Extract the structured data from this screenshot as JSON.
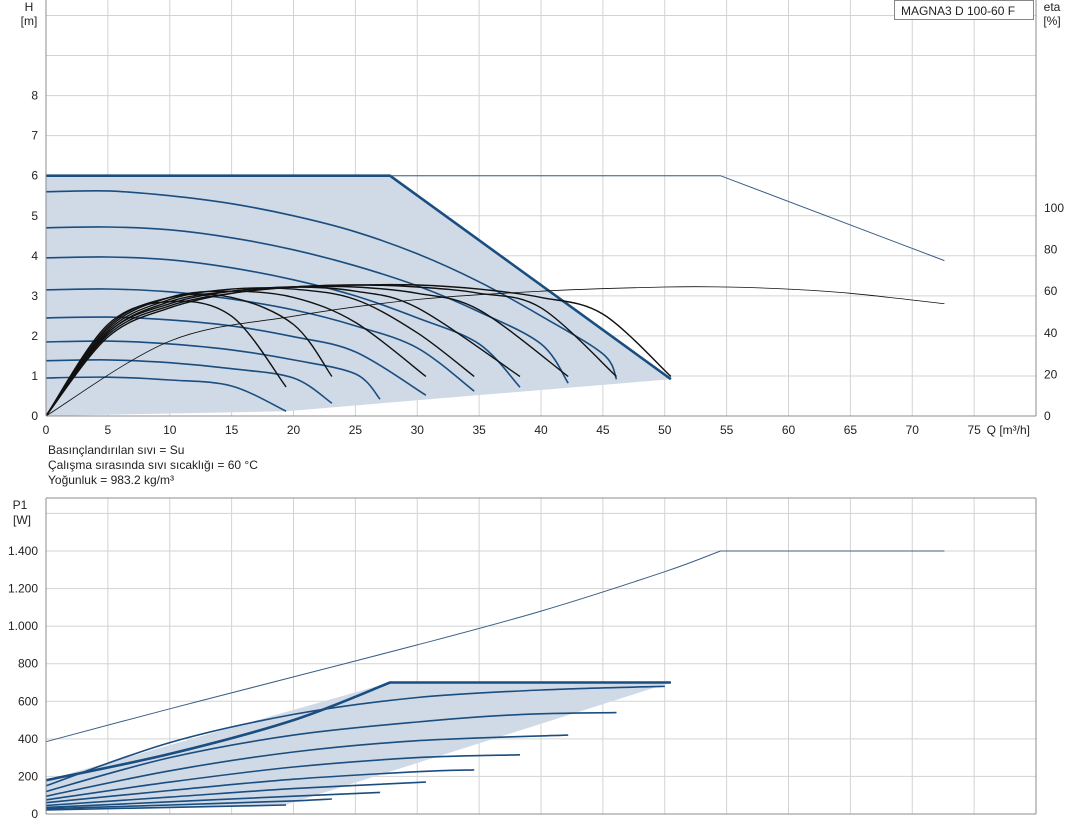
{
  "model_label": "MAGNA3 D 100-60 F",
  "notes": {
    "fluid": "Basınçlandırılan sıvı = Su",
    "temperature": "Çalışma sırasında sıvı sıcaklığı = 60 °C",
    "density": "Yoğunluk = 983.2 kg/m³"
  },
  "chart_data": [
    {
      "type": "line",
      "xlabel": "Q [m³/h]",
      "ylabel_line1": "H",
      "ylabel_line2": "[m]",
      "y2label_line1": "eta",
      "y2label_line2": "[%]",
      "xlim": [
        0,
        80
      ],
      "ylim": [
        0,
        10
      ],
      "y2lim": [
        0,
        100
      ],
      "x_ticks": [
        0,
        5,
        10,
        15,
        20,
        25,
        30,
        35,
        40,
        45,
        50,
        55,
        60,
        65,
        70,
        75
      ],
      "y_ticks": [
        0,
        1,
        2,
        3,
        4,
        5,
        6,
        7,
        8
      ],
      "y2_ticks": [
        0,
        20,
        40,
        60,
        80,
        100
      ],
      "grid": true,
      "colors": {
        "envelope_fill": "#cfdae6",
        "curve": "#1a4d80",
        "efficiency": "#111111",
        "thin_curve": "#3c5f85"
      },
      "envelope": {
        "x": [
          0,
          27.8,
          50.5,
          50.5,
          19.4,
          0
        ],
        "y": [
          6,
          6,
          0.92,
          0.92,
          0.12,
          0
        ]
      },
      "max_head_curve": {
        "x": [
          0,
          27.8,
          50.5
        ],
        "y": [
          6,
          6,
          0.92
        ]
      },
      "double_pump_head_curve": {
        "x": [
          27.8,
          54.5,
          72.6
        ],
        "y": [
          6,
          6,
          3.88
        ]
      },
      "head_curves": [
        {
          "x": [
            0,
            5,
            10,
            15,
            20,
            25,
            30,
            35,
            40,
            45
          ],
          "y": [
            5.6,
            5.62,
            5.5,
            5.3,
            5.0,
            4.6,
            4.05,
            3.35,
            2.5,
            1.55
          ],
          "end": [
            46.1,
            0.92
          ]
        },
        {
          "x": [
            0,
            5,
            10,
            15,
            20,
            25,
            30,
            35,
            40
          ],
          "y": [
            4.7,
            4.72,
            4.65,
            4.45,
            4.15,
            3.75,
            3.25,
            2.6,
            1.8
          ],
          "end": [
            42.2,
            0.82
          ]
        },
        {
          "x": [
            0,
            5,
            10,
            15,
            20,
            25,
            30,
            35
          ],
          "y": [
            3.95,
            3.97,
            3.9,
            3.7,
            3.4,
            3.0,
            2.45,
            1.8
          ],
          "end": [
            38.3,
            0.72
          ]
        },
        {
          "x": [
            0,
            5,
            10,
            15,
            20,
            25,
            30
          ],
          "y": [
            3.15,
            3.17,
            3.1,
            2.92,
            2.65,
            2.25,
            1.7
          ],
          "end": [
            34.6,
            0.62
          ]
        },
        {
          "x": [
            0,
            5,
            10,
            15,
            20,
            25
          ],
          "y": [
            2.45,
            2.47,
            2.4,
            2.25,
            1.98,
            1.6
          ],
          "end": [
            30.7,
            0.52
          ]
        },
        {
          "x": [
            0,
            5,
            10,
            15,
            20,
            25
          ],
          "y": [
            1.85,
            1.87,
            1.8,
            1.65,
            1.4,
            1.05
          ],
          "end": [
            27.0,
            0.42
          ]
        },
        {
          "x": [
            0,
            5,
            10,
            15,
            20
          ],
          "y": [
            1.38,
            1.4,
            1.33,
            1.18,
            0.95
          ],
          "end": [
            23.1,
            0.32
          ]
        },
        {
          "x": [
            0,
            5,
            10,
            15
          ],
          "y": [
            0.95,
            0.97,
            0.9,
            0.75
          ],
          "end": [
            19.4,
            0.12
          ]
        }
      ],
      "efficiency_curves": [
        {
          "x": [
            0,
            5,
            10,
            15,
            20,
            25,
            30,
            35,
            40,
            45,
            50.5
          ],
          "y": [
            0,
            38,
            52,
            59,
            62,
            63,
            63,
            61,
            57,
            49,
            19
          ]
        },
        {
          "x": [
            0,
            5,
            10,
            15,
            20,
            25,
            30,
            35,
            40,
            46.1
          ],
          "y": [
            0,
            39,
            53,
            59,
            62,
            63,
            62,
            59,
            52,
            19
          ]
        },
        {
          "x": [
            0,
            5,
            10,
            15,
            20,
            25,
            30,
            35,
            42.2
          ],
          "y": [
            0,
            40,
            54,
            60,
            62,
            62,
            59,
            51,
            19
          ]
        },
        {
          "x": [
            0,
            5,
            10,
            15,
            20,
            25,
            30,
            38.3
          ],
          "y": [
            0,
            40,
            55,
            60,
            62,
            60,
            52,
            19
          ]
        },
        {
          "x": [
            0,
            5,
            10,
            15,
            20,
            25,
            30,
            34.6
          ],
          "y": [
            0,
            41,
            56,
            61,
            61,
            56,
            40,
            19
          ]
        },
        {
          "x": [
            0,
            5,
            10,
            15,
            20,
            25,
            30.7
          ],
          "y": [
            0,
            42,
            57,
            60,
            57,
            45,
            19
          ]
        },
        {
          "x": [
            0,
            5,
            10,
            15,
            20,
            23.1
          ],
          "y": [
            0,
            43,
            57,
            57,
            44,
            19
          ]
        },
        {
          "x": [
            0,
            5,
            10,
            15,
            19.4
          ],
          "y": [
            0,
            44,
            55,
            48,
            14
          ]
        }
      ],
      "system_efficiency_curve": {
        "x": [
          0,
          10,
          20,
          30,
          40,
          50,
          55,
          60,
          65,
          72.6
        ],
        "y": [
          0,
          36,
          48,
          56,
          60,
          62,
          62,
          61,
          59,
          54
        ]
      }
    },
    {
      "type": "line",
      "xlabel": "",
      "ylabel_line1": "P1",
      "ylabel_line2": "[W]",
      "xlim": [
        0,
        80
      ],
      "ylim": [
        0,
        1600
      ],
      "y_ticks": [
        0,
        200,
        400,
        600,
        800,
        1000,
        1200,
        1400
      ],
      "y_tick_labels": [
        "0",
        "200",
        "400",
        "600",
        "800",
        "1.000",
        "1.200",
        "1.400"
      ],
      "grid": true,
      "envelope": {
        "x": [
          0,
          27.8,
          50.5,
          50.5,
          19.4,
          0
        ],
        "y": [
          180,
          700,
          700,
          700,
          50,
          20
        ]
      },
      "max_power_curve": {
        "x": [
          0,
          10,
          20,
          27.8,
          50.5
        ],
        "y": [
          180,
          320,
          500,
          700,
          700
        ]
      },
      "double_pump_power_curve": {
        "x": [
          0,
          10,
          20,
          30,
          40,
          50,
          54.5,
          72.6
        ],
        "y": [
          385,
          560,
          730,
          900,
          1080,
          1290,
          1400,
          1400
        ]
      },
      "power_curves": [
        {
          "x": [
            0,
            10,
            20,
            30,
            40,
            50
          ],
          "y": [
            150,
            380,
            530,
            620,
            660,
            680
          ]
        },
        {
          "x": [
            0,
            10,
            20,
            30,
            38.5,
            46.1
          ],
          "y": [
            120,
            300,
            420,
            490,
            530,
            540
          ]
        },
        {
          "x": [
            0,
            10,
            20,
            30,
            42.2
          ],
          "y": [
            95,
            230,
            330,
            390,
            420
          ]
        },
        {
          "x": [
            0,
            10,
            20,
            30,
            38.3
          ],
          "y": [
            75,
            170,
            250,
            300,
            315
          ]
        },
        {
          "x": [
            0,
            10,
            20,
            30,
            34.6
          ],
          "y": [
            60,
            125,
            185,
            225,
            235
          ]
        },
        {
          "x": [
            0,
            10,
            20,
            30.7
          ],
          "y": [
            45,
            90,
            135,
            170
          ]
        },
        {
          "x": [
            0,
            10,
            20,
            27.0
          ],
          "y": [
            35,
            65,
            95,
            115
          ]
        },
        {
          "x": [
            0,
            10,
            20,
            23.1
          ],
          "y": [
            28,
            48,
            70,
            80
          ]
        },
        {
          "x": [
            0,
            10,
            19.4
          ],
          "y": [
            22,
            35,
            48
          ]
        }
      ]
    }
  ]
}
